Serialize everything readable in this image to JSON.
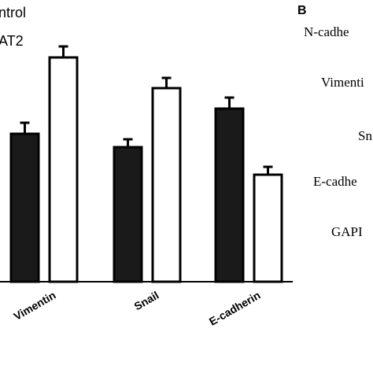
{
  "chart_data": {
    "type": "bar",
    "categories": [
      "Vimentin",
      "Snail",
      "E-cadherin"
    ],
    "series": [
      {
        "name": "ntrol",
        "color": "#1a1a1a",
        "values": [
          188,
          171,
          220
        ],
        "errors": [
          14,
          10,
          14
        ]
      },
      {
        "name": "AT2",
        "color": "#ffffff",
        "values": [
          285,
          246,
          136
        ],
        "errors": [
          14,
          13,
          10
        ]
      }
    ],
    "ylim": [
      0,
      300
    ]
  },
  "panel_b": {
    "letter": "B",
    "labels": [
      "N-cadhe",
      "Vimenti",
      "Sn",
      "E-cadhe",
      "GAPI"
    ]
  }
}
